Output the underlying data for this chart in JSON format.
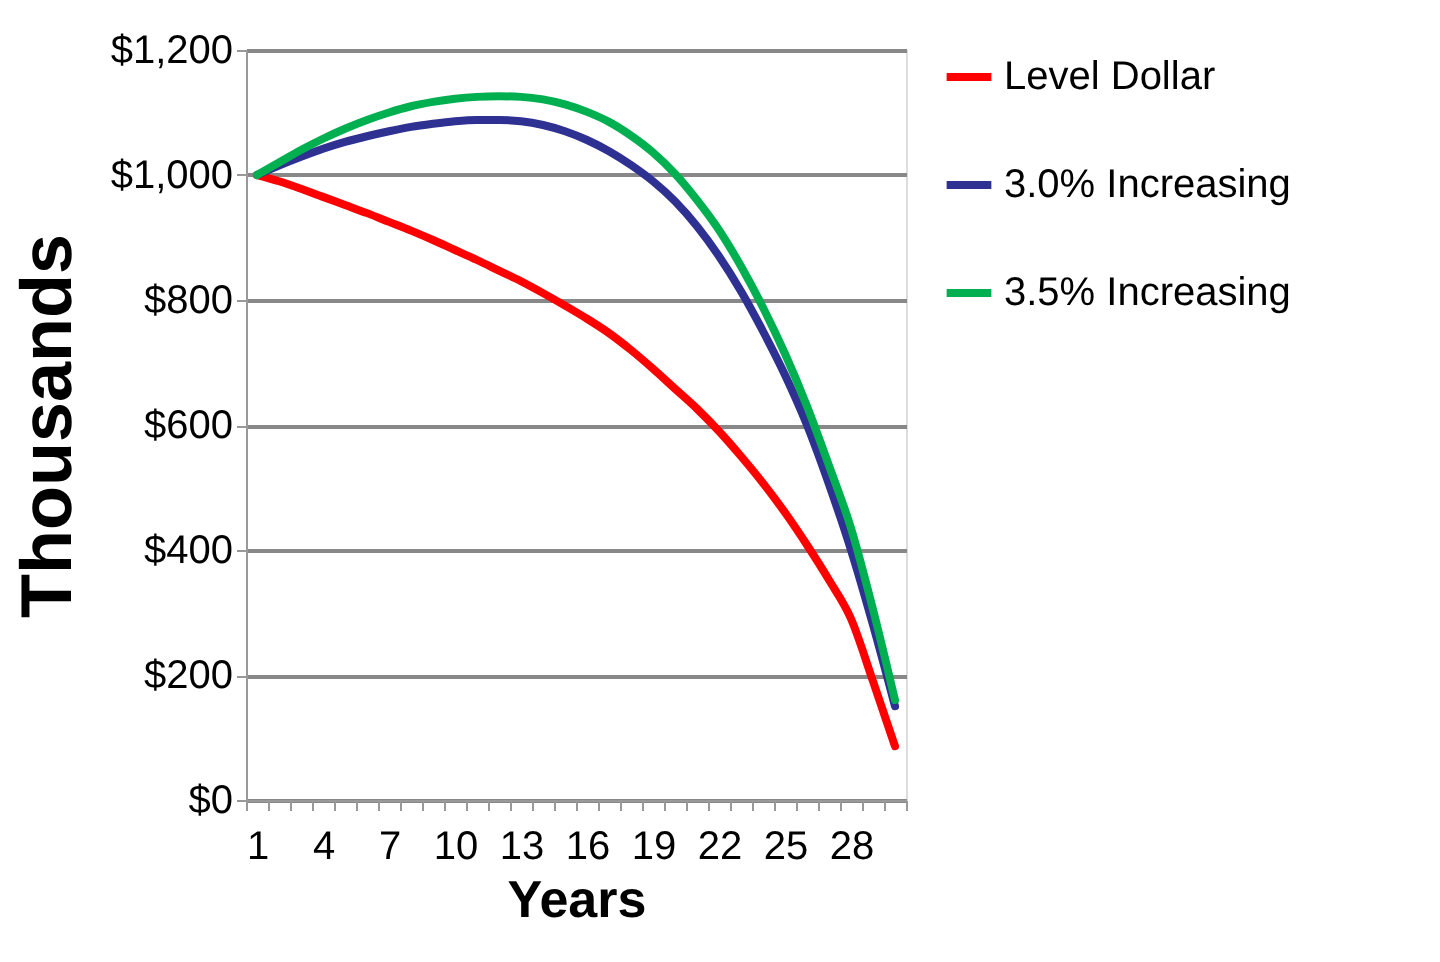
{
  "chart_data": {
    "type": "line",
    "xlabel": "Years",
    "ylabel": "Thousands",
    "categories": [
      "1",
      null,
      null,
      "4",
      null,
      null,
      "7",
      null,
      null,
      "10",
      null,
      null,
      "13",
      null,
      null,
      "16",
      null,
      null,
      "19",
      null,
      null,
      "22",
      null,
      null,
      "25",
      null,
      null,
      "28",
      null,
      null
    ],
    "series": [
      {
        "name": "Level Dollar",
        "color": "#ff0000",
        "values": [
          1000,
          990,
          978,
          965,
          952,
          939,
          925,
          911,
          896,
          880,
          864,
          847,
          830,
          811,
          791,
          770,
          747,
          720,
          690,
          658,
          626,
          590,
          550,
          507,
          460,
          408,
          352,
          290,
          190,
          86
        ]
      },
      {
        "name": "3.0% Increasing",
        "color": "#2e3192",
        "values": [
          1000,
          1015,
          1029,
          1042,
          1053,
          1062,
          1070,
          1077,
          1082,
          1086,
          1088,
          1088,
          1086,
          1080,
          1070,
          1056,
          1038,
          1016,
          990,
          958,
          918,
          870,
          814,
          750,
          680,
          600,
          505,
          400,
          280,
          150
        ]
      },
      {
        "name": "3.5% Increasing",
        "color": "#00b050",
        "values": [
          1000,
          1020,
          1040,
          1058,
          1074,
          1088,
          1100,
          1110,
          1117,
          1122,
          1125,
          1126,
          1125,
          1121,
          1113,
          1101,
          1085,
          1063,
          1036,
          1002,
          960,
          912,
          854,
          788,
          714,
          630,
          535,
          435,
          305,
          160
        ]
      }
    ],
    "ylim": [
      0,
      1200
    ],
    "yticks": [
      {
        "value": 0,
        "label": "$0"
      },
      {
        "value": 200,
        "label": "$200"
      },
      {
        "value": 400,
        "label": "$400"
      },
      {
        "value": 600,
        "label": "$600"
      },
      {
        "value": 800,
        "label": "$800"
      },
      {
        "value": 1000,
        "label": "$1,000"
      },
      {
        "value": 1200,
        "label": "$1,200"
      }
    ],
    "grid": "y",
    "legend": "right",
    "line_style": "solid",
    "marker": "none"
  }
}
